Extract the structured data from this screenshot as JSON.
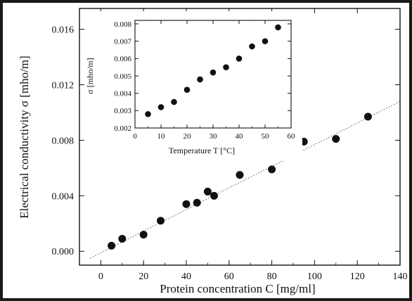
{
  "chart_data": [
    {
      "type": "scatter",
      "title": "",
      "xlabel": "Protein concentration  C  [mg/ml]",
      "ylabel": "Electrical conductivity σ [mho/m]",
      "xlim": [
        -10,
        140
      ],
      "ylim": [
        -0.001,
        0.0175
      ],
      "xticks": [
        "0",
        "20",
        "40",
        "60",
        "80",
        "100",
        "120",
        "140"
      ],
      "yticks": [
        "0.000",
        "0.004",
        "0.008",
        "0.012",
        "0.016"
      ],
      "fit_line": {
        "style": "dotted",
        "from": [
          -5,
          -0.0005
        ],
        "to": [
          140,
          0.0108
        ]
      },
      "series": [
        {
          "points": [
            [
              5,
              0.0004
            ],
            [
              10,
              0.0009
            ],
            [
              20,
              0.0012
            ],
            [
              28,
              0.0022
            ],
            [
              40,
              0.0034
            ],
            [
              45,
              0.0035
            ],
            [
              50,
              0.0043
            ],
            [
              53,
              0.004
            ],
            [
              65,
              0.0055
            ],
            [
              80,
              0.0059
            ],
            [
              95,
              0.0079
            ],
            [
              110,
              0.0081
            ],
            [
              125,
              0.0097
            ]
          ]
        }
      ]
    },
    {
      "type": "scatter",
      "title": "",
      "xlabel": "Temperature T [°C]",
      "ylabel": "σ [mho/m]",
      "xlim": [
        0,
        60
      ],
      "ylim": [
        0.002,
        0.0082
      ],
      "xticks": [
        "0",
        "10",
        "20",
        "30",
        "40",
        "50",
        "60"
      ],
      "yticks": [
        "0.002",
        "0.003",
        "0.004",
        "0.005",
        "0.006",
        "0.007",
        "0.008"
      ],
      "series": [
        {
          "points": [
            [
              5,
              0.0028
            ],
            [
              10,
              0.0032
            ],
            [
              15,
              0.0035
            ],
            [
              20,
              0.0042
            ],
            [
              25,
              0.0048
            ],
            [
              30,
              0.0052
            ],
            [
              35,
              0.0055
            ],
            [
              40,
              0.006
            ],
            [
              45,
              0.0067
            ],
            [
              50,
              0.007
            ],
            [
              55,
              0.0078
            ]
          ]
        }
      ]
    }
  ]
}
